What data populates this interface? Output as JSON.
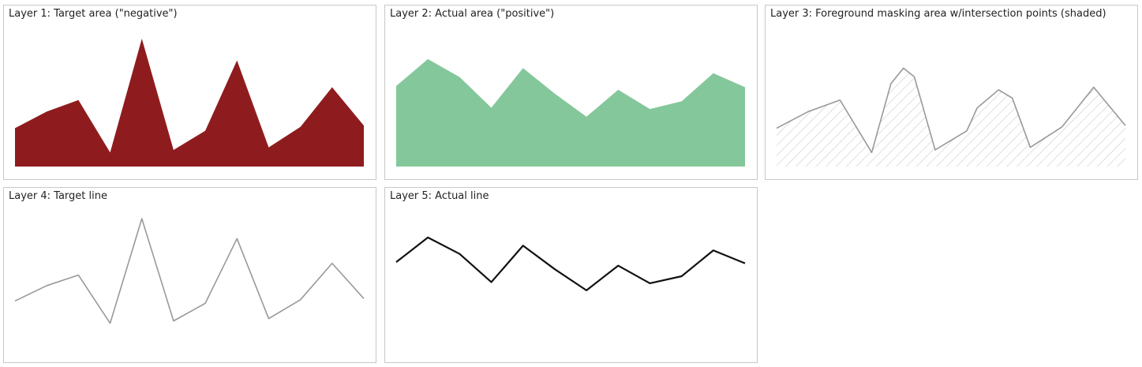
{
  "panels": [
    {
      "title": "Layer 1: Target area (\"negative\")"
    },
    {
      "title": "Layer 2: Actual area (\"positive\")"
    },
    {
      "title": "Layer 3: Foreground masking area w/intersection points (shaded)"
    },
    {
      "title": "Layer 4: Target line"
    },
    {
      "title": "Layer 5: Actual line"
    }
  ],
  "colors": {
    "target_area": "#8e1c1e",
    "actual_area": "#84c79b",
    "mask_line": "#999999",
    "hatch": "#cfcfcf",
    "target_line": "#999999",
    "actual_line": "#111111"
  },
  "chart_data": {
    "type": "area",
    "x": [
      0,
      1,
      2,
      3,
      4,
      5,
      6,
      7,
      8,
      9,
      10,
      11
    ],
    "ylim": [
      0,
      10
    ],
    "series": [
      {
        "values": [
          3.0,
          4.3,
          5.2,
          1.1,
          10.0,
          1.3,
          2.8,
          8.3,
          1.5,
          3.1,
          6.2,
          3.2
        ]
      },
      {
        "values": [
          6.3,
          8.4,
          7.0,
          4.6,
          7.7,
          5.7,
          3.9,
          6.0,
          4.5,
          5.1,
          7.3,
          6.2
        ]
      }
    ]
  }
}
